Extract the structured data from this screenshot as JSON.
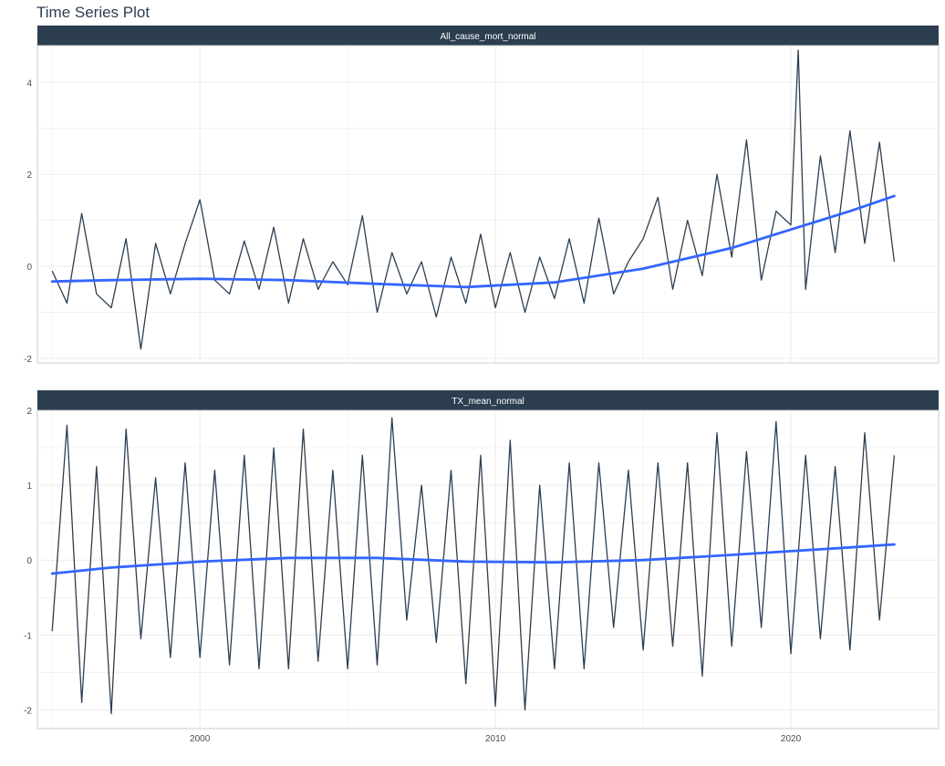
{
  "title": "Time Series Plot",
  "colors": {
    "strip": "#2c3e50",
    "series": "#2c3e50",
    "smooth": "#3366ff",
    "grid": "#ebebeb",
    "panel_border": "#cccccc"
  },
  "chart_data": [
    {
      "type": "line",
      "facet": "All_cause_mort_normal",
      "xlim": [
        1994.5,
        2025.0
      ],
      "ylim": [
        -2.1,
        4.8
      ],
      "x_ticks": [
        2000,
        2010,
        2020
      ],
      "x_tick_labels": [
        "2000",
        "2010",
        "2020"
      ],
      "y_ticks": [
        -2,
        0,
        2,
        4
      ],
      "y_tick_labels": [
        "-2",
        "0",
        "2",
        "4"
      ],
      "grid": true,
      "series": {
        "x": [
          1995.0,
          1995.5,
          1996.0,
          1996.5,
          1997.0,
          1997.5,
          1998.0,
          1998.5,
          1999.0,
          1999.5,
          2000.0,
          2000.5,
          2001.0,
          2001.5,
          2002.0,
          2002.5,
          2003.0,
          2003.5,
          2004.0,
          2004.5,
          2005.0,
          2005.5,
          2006.0,
          2006.5,
          2007.0,
          2007.5,
          2008.0,
          2008.5,
          2009.0,
          2009.5,
          2010.0,
          2010.5,
          2011.0,
          2011.5,
          2012.0,
          2012.5,
          2013.0,
          2013.5,
          2014.0,
          2014.5,
          2015.0,
          2015.5,
          2016.0,
          2016.5,
          2017.0,
          2017.5,
          2018.0,
          2018.5,
          2019.0,
          2019.5,
          2020.0,
          2020.25,
          2020.5,
          2021.0,
          2021.5,
          2022.0,
          2022.5,
          2023.0,
          2023.5
        ],
        "y": [
          -0.1,
          -0.8,
          1.15,
          -0.6,
          -0.9,
          0.6,
          -1.8,
          0.5,
          -0.6,
          0.5,
          1.45,
          -0.3,
          -0.6,
          0.55,
          -0.5,
          0.85,
          -0.8,
          0.6,
          -0.5,
          0.1,
          -0.4,
          1.1,
          -1.0,
          0.3,
          -0.6,
          0.1,
          -1.1,
          0.2,
          -0.8,
          0.7,
          -0.9,
          0.3,
          -1.0,
          0.2,
          -0.7,
          0.6,
          -0.8,
          1.05,
          -0.6,
          0.1,
          0.6,
          1.5,
          -0.5,
          1.0,
          -0.2,
          2.0,
          0.2,
          2.75,
          -0.3,
          1.2,
          0.9,
          4.7,
          -0.5,
          2.4,
          0.3,
          2.95,
          0.5,
          2.7,
          0.1
        ]
      },
      "smooth": {
        "x": [
          1995,
          1997,
          2000,
          2003,
          2006,
          2009,
          2012,
          2015,
          2018,
          2020,
          2022,
          2023.5
        ],
        "y": [
          -0.33,
          -0.3,
          -0.27,
          -0.3,
          -0.38,
          -0.45,
          -0.35,
          -0.05,
          0.4,
          0.8,
          1.2,
          1.53
        ]
      }
    },
    {
      "type": "line",
      "facet": "TX_mean_normal",
      "xlim": [
        1994.5,
        2025.0
      ],
      "ylim": [
        -2.25,
        2.0
      ],
      "x_ticks": [
        2000,
        2010,
        2020
      ],
      "x_tick_labels": [
        "2000",
        "2010",
        "2020"
      ],
      "y_ticks": [
        -2,
        -1,
        0,
        1,
        2
      ],
      "y_tick_labels": [
        "-2",
        "-1",
        "0",
        "1",
        "2"
      ],
      "grid": true,
      "series": {
        "x": [
          1995.0,
          1995.5,
          1996.0,
          1996.5,
          1997.0,
          1997.5,
          1998.0,
          1998.5,
          1999.0,
          1999.5,
          2000.0,
          2000.5,
          2001.0,
          2001.5,
          2002.0,
          2002.5,
          2003.0,
          2003.5,
          2004.0,
          2004.5,
          2005.0,
          2005.5,
          2006.0,
          2006.5,
          2007.0,
          2007.5,
          2008.0,
          2008.5,
          2009.0,
          2009.5,
          2010.0,
          2010.5,
          2011.0,
          2011.5,
          2012.0,
          2012.5,
          2013.0,
          2013.5,
          2014.0,
          2014.5,
          2015.0,
          2015.5,
          2016.0,
          2016.5,
          2017.0,
          2017.5,
          2018.0,
          2018.5,
          2019.0,
          2019.5,
          2020.0,
          2020.5,
          2021.0,
          2021.5,
          2022.0,
          2022.5,
          2023.0,
          2023.5
        ],
        "y": [
          -0.95,
          1.8,
          -1.9,
          1.25,
          -2.05,
          1.75,
          -1.05,
          1.1,
          -1.3,
          1.3,
          -1.3,
          1.2,
          -1.4,
          1.4,
          -1.45,
          1.5,
          -1.45,
          1.75,
          -1.35,
          1.2,
          -1.45,
          1.4,
          -1.4,
          1.9,
          -0.8,
          1.0,
          -1.1,
          1.2,
          -1.65,
          1.4,
          -1.95,
          1.6,
          -2.0,
          1.0,
          -1.45,
          1.3,
          -1.45,
          1.3,
          -0.9,
          1.2,
          -1.2,
          1.3,
          -1.15,
          1.3,
          -1.55,
          1.7,
          -1.15,
          1.45,
          -0.9,
          1.85,
          -1.25,
          1.4,
          -1.05,
          1.25,
          -1.2,
          1.7,
          -0.8,
          1.4
        ]
      },
      "smooth": {
        "x": [
          1995,
          1997,
          2000,
          2003,
          2006,
          2009,
          2012,
          2015,
          2018,
          2020,
          2022,
          2023.5
        ],
        "y": [
          -0.18,
          -0.1,
          -0.02,
          0.03,
          0.03,
          -0.02,
          -0.03,
          0.0,
          0.07,
          0.12,
          0.17,
          0.21
        ]
      }
    }
  ]
}
